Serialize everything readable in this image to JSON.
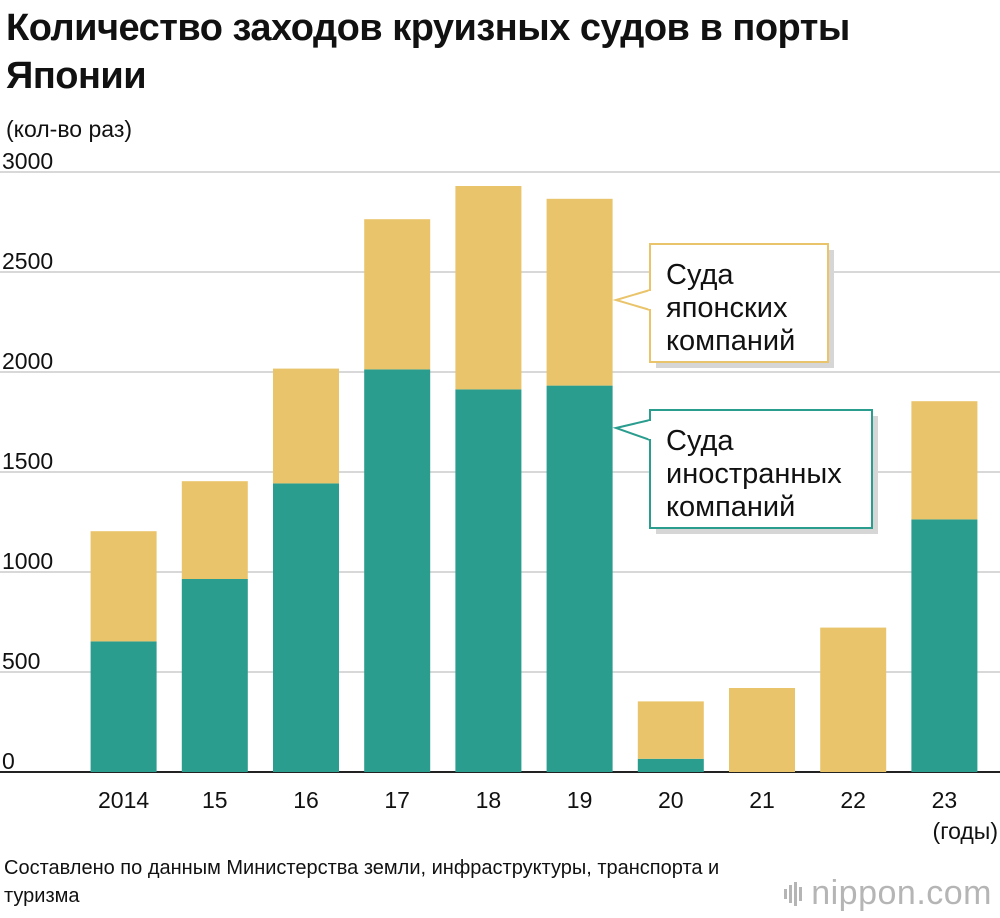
{
  "title": "Количество заходов круизных судов в порты Японии",
  "y_unit": "(кол-во раз)",
  "x_unit": "(годы)",
  "source": "Составлено по данным Министерства земли, инфраструктуры, транспорта и туризма",
  "logo": {
    "text": "nippon.com",
    "icon": "nippon-logo-icon"
  },
  "colors": {
    "foreign": "#2a9d8f",
    "japanese": "#e9c46a",
    "grid": "#cccccc",
    "axis": "#222222"
  },
  "chart_data": {
    "type": "bar",
    "stacked": true,
    "title": "Количество заходов круизных судов в порты Японии",
    "ylabel": "(кол-во раз)",
    "xlabel": "(годы)",
    "categories": [
      "2014",
      "15",
      "16",
      "17",
      "18",
      "19",
      "20",
      "21",
      "22",
      "23"
    ],
    "ylim": [
      0,
      3000
    ],
    "yticks": [
      0,
      500,
      1000,
      1500,
      2000,
      2500,
      3000
    ],
    "grid": true,
    "series": [
      {
        "name": "Суда иностранных компаний",
        "color": "#2a9d8f",
        "values": [
          653,
          965,
          1443,
          2013,
          1913,
          1932,
          66,
          0,
          0,
          1263
        ]
      },
      {
        "name": "Суда японских компаний",
        "color": "#e9c46a",
        "values": [
          551,
          489,
          574,
          751,
          1017,
          934,
          287,
          420,
          722,
          591
        ]
      }
    ],
    "annotations": [
      {
        "series": "Суда японских компаний",
        "lines": [
          "Суда",
          "японских",
          "компаний"
        ]
      },
      {
        "series": "Суда иностранных компаний",
        "lines": [
          "Суда",
          "иностранных",
          "компаний"
        ]
      }
    ]
  }
}
